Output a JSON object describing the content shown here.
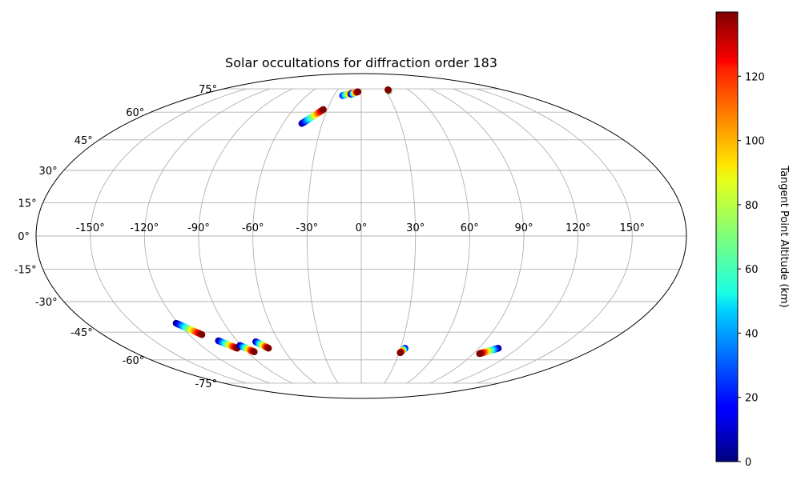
{
  "chart_data": {
    "type": "scatter",
    "projection": "Mollweide",
    "title": "Solar occultations for diffraction order 183",
    "x_ticks": [
      "-150°",
      "-120°",
      "-90°",
      "-60°",
      "-30°",
      "0°",
      "30°",
      "60°",
      "90°",
      "120°",
      "150°"
    ],
    "y_ticks": [
      "-75°",
      "-60°",
      "-45°",
      "-30°",
      "-15°",
      "0°",
      "15°",
      "30°",
      "45°",
      "60°",
      "75°"
    ],
    "x_tick_values": [
      -150,
      -120,
      -90,
      -60,
      -30,
      0,
      30,
      60,
      90,
      120,
      150
    ],
    "y_tick_values": [
      -75,
      -60,
      -45,
      -30,
      -15,
      0,
      15,
      30,
      45,
      60,
      75
    ],
    "xlim": [
      -180,
      180
    ],
    "ylim": [
      -90,
      90
    ],
    "grid": true,
    "colormap": "jet",
    "colorbar": {
      "label": "Tangent Point Altitude (km)",
      "range": [
        0,
        140
      ],
      "ticks": [
        "0",
        "20",
        "40",
        "60",
        "80",
        "100",
        "120"
      ],
      "tick_values": [
        0,
        20,
        40,
        60,
        80,
        100,
        120
      ]
    },
    "tracks": [
      {
        "lon_start": -45.6,
        "lat_start": 53.6,
        "lon_end": -33.5,
        "lat_end": 61.6,
        "alt_start": 0,
        "alt_end": 140
      },
      {
        "lon_start": -20.5,
        "lat_start": 70.3,
        "lon_end": -10.3,
        "lat_end": 72.0,
        "alt_start": 15,
        "alt_end": 125
      },
      {
        "lon_start": -11.5,
        "lat_start": 71.2,
        "lon_end": -4.0,
        "lat_end": 72.9,
        "alt_start": 0,
        "alt_end": 140
      },
      {
        "lon_start": 34.0,
        "lat_start": 73.5,
        "lon_end": 34.0,
        "lat_end": 74.3,
        "alt_start": 20,
        "alt_end": 140
      },
      {
        "lon_start": -121.5,
        "lat_start": -40.5,
        "lon_end": -111.0,
        "lat_end": -46.3,
        "alt_start": 0,
        "alt_end": 140
      },
      {
        "lon_start": -103.5,
        "lat_start": -49.5,
        "lon_end": -95.0,
        "lat_end": -53.5,
        "alt_start": 0,
        "alt_end": 140
      },
      {
        "lon_start": -91.0,
        "lat_start": -52.0,
        "lon_end": -84.5,
        "lat_end": -55.5,
        "alt_start": 0,
        "alt_end": 140
      },
      {
        "lon_start": -77.0,
        "lat_start": -50.0,
        "lon_end": -71.0,
        "lat_end": -53.5,
        "alt_start": 0,
        "alt_end": 140
      },
      {
        "lon_start": 33.5,
        "lat_start": -53.5,
        "lon_end": 31.0,
        "lat_end": -56.0,
        "alt_start": 0,
        "alt_end": 140
      },
      {
        "lon_start": 105.0,
        "lat_start": -53.5,
        "lon_end": 95.0,
        "lat_end": -56.5,
        "alt_start": 0,
        "alt_end": 140
      }
    ]
  }
}
